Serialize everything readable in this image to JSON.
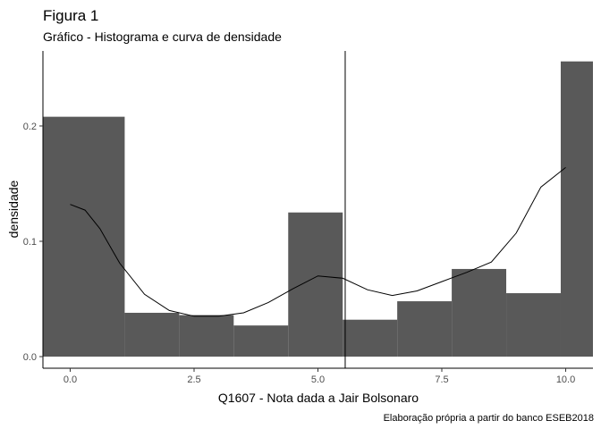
{
  "chart_data": {
    "type": "bar",
    "title": "Figura 1",
    "subtitle": "Gráfico - Histograma e curva de densidade",
    "xlabel": "Q1607 - Nota dada a Jair Bolsonaro",
    "ylabel": "densidade",
    "caption": "Elaboração própria a partir do banco ESEB2018",
    "xlim": [
      -0.55,
      10.55
    ],
    "ylim": [
      0,
      0.255
    ],
    "x_ticks": [
      0,
      2.5,
      5,
      7.5,
      10
    ],
    "x_tick_labels": [
      "0.0",
      "2.5",
      "5.0",
      "7.5",
      "10.0"
    ],
    "y_ticks": [
      0,
      0.1,
      0.2
    ],
    "y_tick_labels": [
      "0.0",
      "0.1",
      "0.2"
    ],
    "grid": false,
    "bar_color": "#595959",
    "histogram": {
      "bins": [
        {
          "x0": -1.0,
          "x1": 1.1,
          "density": 0.208
        },
        {
          "x0": 1.1,
          "x1": 2.2,
          "density": 0.038
        },
        {
          "x0": 2.2,
          "x1": 3.3,
          "density": 0.036
        },
        {
          "x0": 3.3,
          "x1": 4.4,
          "density": 0.027
        },
        {
          "x0": 4.4,
          "x1": 5.5,
          "density": 0.125
        },
        {
          "x0": 5.5,
          "x1": 6.6,
          "density": 0.032
        },
        {
          "x0": 6.6,
          "x1": 7.7,
          "density": 0.048
        },
        {
          "x0": 7.7,
          "x1": 8.8,
          "density": 0.076
        },
        {
          "x0": 8.8,
          "x1": 9.9,
          "density": 0.055
        },
        {
          "x0": 9.9,
          "x1": 11.0,
          "density": 0.256
        }
      ]
    },
    "density_curve": {
      "x": [
        0.0,
        0.3,
        0.6,
        1.0,
        1.5,
        2.0,
        2.5,
        3.0,
        3.5,
        4.0,
        4.5,
        5.0,
        5.5,
        6.0,
        6.5,
        7.0,
        7.5,
        8.0,
        8.5,
        9.0,
        9.5,
        10.0
      ],
      "y": [
        0.132,
        0.127,
        0.111,
        0.081,
        0.054,
        0.04,
        0.035,
        0.035,
        0.038,
        0.047,
        0.059,
        0.07,
        0.068,
        0.058,
        0.053,
        0.057,
        0.065,
        0.073,
        0.082,
        0.107,
        0.147,
        0.164
      ]
    },
    "vline": {
      "x": 5.55
    }
  }
}
